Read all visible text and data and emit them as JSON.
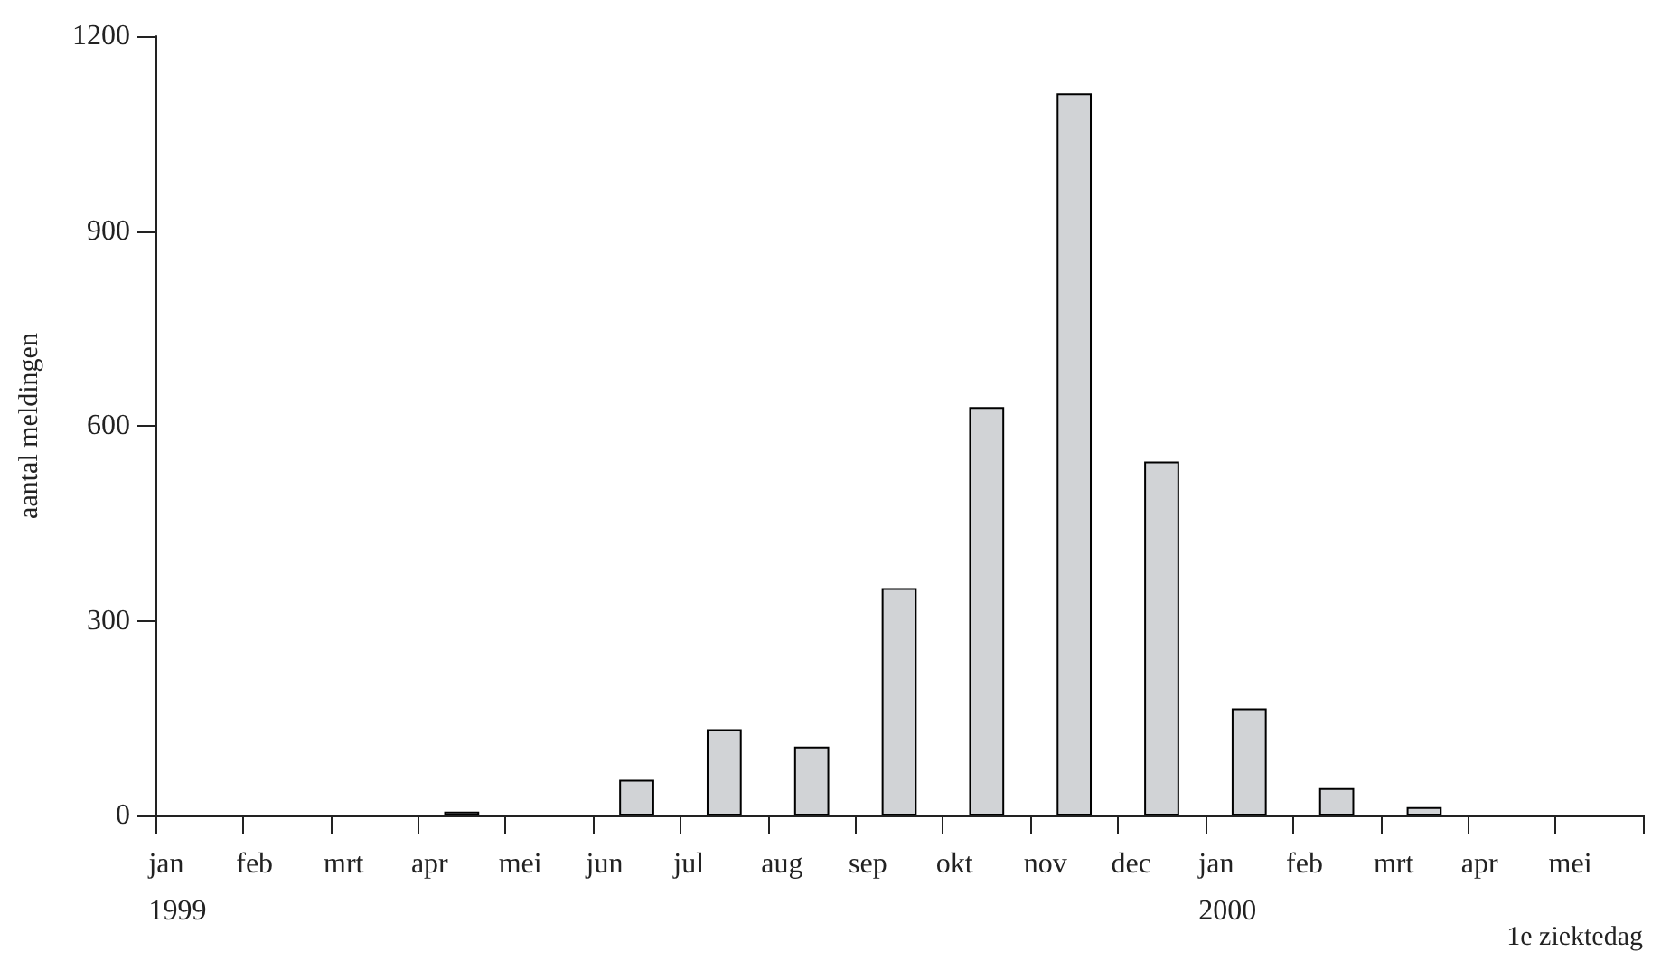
{
  "chart_data": {
    "type": "bar",
    "xlabel": "1e ziektedag",
    "ylabel": "aantal meldingen",
    "categories": [
      "jan\n1999",
      "feb",
      "mrt",
      "apr",
      "mei",
      "jun",
      "jul",
      "aug",
      "sep",
      "okt",
      "nov",
      "dec",
      "jan\n2000",
      "feb",
      "mrt",
      "apr",
      "mei"
    ],
    "values": [
      0,
      0,
      0,
      6,
      0,
      55,
      133,
      106,
      350,
      629,
      1112,
      545,
      165,
      42,
      13,
      0,
      0
    ],
    "color": "#d1d3d6",
    "ylim": [
      0,
      1200
    ],
    "yticks": [
      0,
      300,
      600,
      900,
      1200
    ],
    "grid": false
  }
}
